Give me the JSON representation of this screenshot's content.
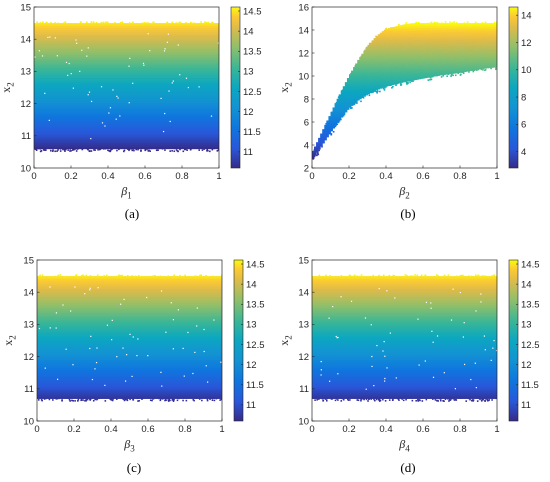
{
  "chart_data": [
    {
      "type": "scatter",
      "panel_label": "(a)",
      "xlabel": "β1",
      "xlabel_base": "β",
      "xlabel_sub": "1",
      "ylabel": "x2",
      "ylabel_base": "x",
      "ylabel_sub": "2",
      "xlim": [
        0,
        1
      ],
      "ylim": [
        10,
        15
      ],
      "xticks": [
        "0",
        "0.2",
        "0.4",
        "0.6",
        "0.8",
        "1"
      ],
      "yticks": [
        "10",
        "11",
        "12",
        "13",
        "14",
        "15"
      ],
      "points_description": "uniform cloud over x in [0,1], y in [10.6,14.5], colored by y",
      "y_band": [
        10.6,
        14.5
      ],
      "colorbar": {
        "range": [
          10.6,
          14.6
        ],
        "ticks": [
          "11",
          "11.5",
          "12",
          "12.5",
          "13",
          "13.5",
          "14",
          "14.5"
        ]
      }
    },
    {
      "type": "scatter",
      "panel_label": "(b)",
      "xlabel": "β2",
      "xlabel_base": "β",
      "xlabel_sub": "2",
      "ylabel": "x2",
      "ylabel_base": "x",
      "ylabel_sub": "2",
      "xlim": [
        0,
        1
      ],
      "ylim": [
        2,
        16
      ],
      "xticks": [
        "0",
        "0.2",
        "0.4",
        "0.6",
        "0.8",
        "1"
      ],
      "yticks": [
        "2",
        "4",
        "6",
        "8",
        "10",
        "12",
        "14",
        "16"
      ],
      "region": {
        "upper": {
          "x": [
            0,
            0.05,
            0.1,
            0.15,
            0.2,
            0.25,
            0.3,
            0.35,
            0.4,
            0.5,
            0.55,
            0.6,
            1.0
          ],
          "y": [
            3.3,
            5.0,
            6.7,
            8.4,
            10.0,
            11.4,
            12.6,
            13.5,
            14.1,
            14.5,
            14.6,
            14.6,
            14.6
          ]
        },
        "lower": {
          "x": [
            0,
            0.05,
            0.1,
            0.15,
            0.2,
            0.25,
            0.3,
            0.35,
            0.4,
            0.5,
            0.6,
            0.7,
            0.8,
            0.9,
            1.0
          ],
          "y": [
            2.7,
            3.9,
            5.1,
            6.2,
            7.2,
            7.9,
            8.4,
            8.8,
            9.1,
            9.5,
            9.8,
            10.1,
            10.3,
            10.6,
            10.8
          ]
        }
      },
      "colorbar": {
        "range": [
          2.8,
          14.6
        ],
        "ticks": [
          "4",
          "6",
          "8",
          "10",
          "12",
          "14"
        ]
      }
    },
    {
      "type": "scatter",
      "panel_label": "(c)",
      "xlabel": "β3",
      "xlabel_base": "β",
      "xlabel_sub": "3",
      "ylabel": "x2",
      "ylabel_base": "x",
      "ylabel_sub": "2",
      "xlim": [
        0,
        1
      ],
      "ylim": [
        10,
        15
      ],
      "xticks": [
        "0",
        "0.2",
        "0.4",
        "0.6",
        "0.8",
        "1"
      ],
      "yticks": [
        "10",
        "11",
        "12",
        "13",
        "14",
        "15"
      ],
      "y_band": [
        10.7,
        14.5
      ],
      "colorbar": {
        "range": [
          10.6,
          14.6
        ],
        "ticks": [
          "11",
          "11.5",
          "12",
          "12.5",
          "13",
          "13.5",
          "14",
          "14.5"
        ]
      }
    },
    {
      "type": "scatter",
      "panel_label": "(d)",
      "xlabel": "β4",
      "xlabel_base": "β",
      "xlabel_sub": "4",
      "ylabel": "x2",
      "ylabel_base": "x",
      "ylabel_sub": "2",
      "xlim": [
        0,
        1
      ],
      "ylim": [
        10,
        15
      ],
      "xticks": [
        "0",
        "0.2",
        "0.4",
        "0.6",
        "0.8",
        "1"
      ],
      "yticks": [
        "10",
        "11",
        "12",
        "13",
        "14",
        "15"
      ],
      "y_band": [
        10.7,
        14.5
      ],
      "colorbar": {
        "range": [
          10.6,
          14.6
        ],
        "ticks": [
          "11",
          "11.5",
          "12",
          "12.5",
          "13",
          "13.5",
          "14",
          "14.5"
        ]
      }
    }
  ]
}
